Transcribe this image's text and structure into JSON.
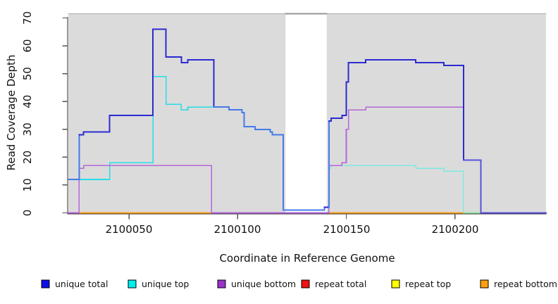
{
  "chart_data": {
    "type": "line",
    "title": "",
    "xlabel": "Coordinate in Reference Genome",
    "ylabel": "Read Coverage Depth",
    "xlim": [
      2100022,
      2100242
    ],
    "ylim": [
      0,
      70
    ],
    "grid": false,
    "plot_bg_color": "#DBDBDB",
    "gap_region": {
      "x0": 2100122,
      "x1": 2100141,
      "color": "#FFFFFF"
    },
    "x_ticks": [
      {
        "label": "2100050",
        "value": 2100050
      },
      {
        "label": "2100100",
        "value": 2100100
      },
      {
        "label": "2100150",
        "value": 2100150
      },
      {
        "label": "2100200",
        "value": 2100200
      }
    ],
    "y_ticks": [
      {
        "label": "0",
        "value": 0
      },
      {
        "label": "10",
        "value": 10
      },
      {
        "label": "20",
        "value": 20
      },
      {
        "label": "30",
        "value": 30
      },
      {
        "label": "40",
        "value": 40
      },
      {
        "label": "50",
        "value": 50
      },
      {
        "label": "60",
        "value": 60
      },
      {
        "label": "70",
        "value": 70
      }
    ],
    "series": [
      {
        "name": "unique total",
        "color": "#2B2BD0",
        "width": 2,
        "segments": [
          [
            [
              2100022,
              12
            ],
            [
              2100027,
              28
            ],
            [
              2100029,
              29
            ],
            [
              2100041,
              35
            ],
            [
              2100061,
              66
            ],
            [
              2100067,
              56
            ],
            [
              2100074,
              54
            ],
            [
              2100077,
              55
            ],
            [
              2100089,
              38
            ],
            [
              2100096,
              37
            ],
            [
              2100102,
              36
            ],
            [
              2100103,
              31
            ],
            [
              2100108,
              30
            ],
            [
              2100115,
              29
            ],
            [
              2100116,
              28
            ],
            [
              2100121,
              1
            ],
            [
              2100140,
              2
            ],
            [
              2100142,
              33
            ],
            [
              2100143,
              34
            ],
            [
              2100148,
              35
            ],
            [
              2100150,
              47
            ],
            [
              2100151,
              54
            ],
            [
              2100159,
              55
            ],
            [
              2100182,
              54
            ],
            [
              2100195,
              53
            ],
            [
              2100204,
              19
            ],
            [
              2100212,
              0
            ],
            [
              2100242,
              0
            ]
          ]
        ],
        "color_spans": [
          {
            "from": 2100022,
            "to": 2100027,
            "color": "#4579E8"
          },
          {
            "from": 2100089,
            "to": 2100141,
            "color": "#4579E8"
          },
          {
            "from": 2100204,
            "to": 2100242,
            "color": "#5B50DE"
          }
        ]
      },
      {
        "name": "unique top",
        "color": "#26DEE8",
        "width": 1.6,
        "segments": [
          [
            [
              2100022,
              12
            ],
            [
              2100041,
              18
            ],
            [
              2100061,
              49
            ],
            [
              2100067,
              39
            ],
            [
              2100074,
              37
            ],
            [
              2100077,
              38
            ],
            [
              2100096,
              37
            ],
            [
              2100102,
              36
            ],
            [
              2100103,
              31
            ],
            [
              2100108,
              30
            ],
            [
              2100115,
              29
            ],
            [
              2100116,
              28
            ],
            [
              2100121,
              1
            ],
            [
              2100140,
              2
            ],
            [
              2100142,
              16
            ],
            [
              2100143,
              17
            ],
            [
              2100182,
              16
            ],
            [
              2100195,
              15
            ],
            [
              2100204,
              0
            ],
            [
              2100213,
              0
            ]
          ]
        ],
        "color_spans": [
          {
            "from": 2100141,
            "to": 2100204,
            "color": "#7FE9DF"
          },
          {
            "from": 2100204,
            "to": 2100214,
            "color": "#93E6A5"
          }
        ]
      },
      {
        "name": "unique bottom",
        "color": "#B467DA",
        "width": 1.6,
        "segments": [
          [
            [
              2100022,
              0
            ],
            [
              2100027,
              16
            ],
            [
              2100029,
              17
            ],
            [
              2100088,
              0
            ],
            [
              2100142,
              17
            ],
            [
              2100148,
              18
            ],
            [
              2100150,
              30
            ],
            [
              2100151,
              37
            ],
            [
              2100159,
              38
            ],
            [
              2100204,
              19
            ],
            [
              2100212,
              0
            ],
            [
              2100242,
              0
            ]
          ]
        ],
        "color_spans": []
      },
      {
        "name": "repeat total",
        "color": "#D05070",
        "width": 1.8,
        "segments": [
          [
            [
              2100022,
              0
            ],
            [
              2100242,
              0
            ]
          ]
        ],
        "color_spans": []
      },
      {
        "name": "repeat top",
        "color": "#F5F53C",
        "width": 1.6,
        "segments": [
          [
            [
              2100027,
              0
            ],
            [
              2100088,
              0
            ]
          ],
          [
            [
              2100142,
              0
            ],
            [
              2100204,
              0
            ]
          ]
        ],
        "color_spans": []
      },
      {
        "name": "repeat bottom",
        "color": "#FF9E1B",
        "width": 1.8,
        "segments": [
          [
            [
              2100027,
              0
            ],
            [
              2100088,
              0
            ]
          ],
          [
            [
              2100142,
              0
            ],
            [
              2100204,
              0
            ]
          ]
        ],
        "color_spans": []
      }
    ]
  },
  "legend": {
    "items": [
      {
        "label": "unique total",
        "color": "#0F0FE8"
      },
      {
        "label": "unique top",
        "color": "#00F0F0"
      },
      {
        "label": "unique bottom",
        "color": "#9933CC"
      },
      {
        "label": "repeat total",
        "color": "#EE1111"
      },
      {
        "label": "repeat top",
        "color": "#FFFF00"
      },
      {
        "label": "repeat bottom",
        "color": "#FFA010"
      }
    ]
  }
}
